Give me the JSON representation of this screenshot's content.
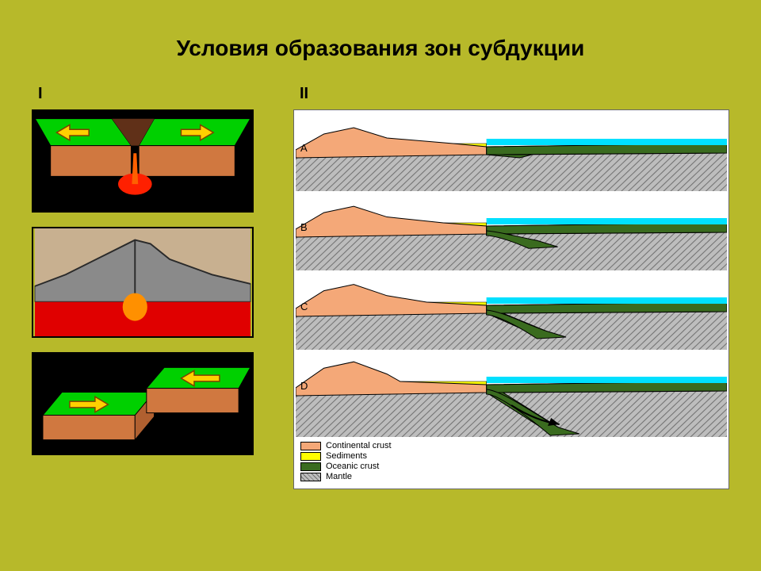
{
  "slide": {
    "background": "#b7b92a",
    "title": "Условия образования зон субдукции",
    "title_fontsize": 28,
    "title_color": "#000000",
    "col1_label": "I",
    "col2_label": "II"
  },
  "panels_left": {
    "p1": {
      "type": "divergent-plates-iso",
      "bg": "#000000",
      "plate_top_color": "#00d000",
      "plate_side_color": "#b06030",
      "plate_front_color": "#d07840",
      "magma_color": "#ff2000",
      "arrow_fill": "#ffd000",
      "arrow_border": "#804000"
    },
    "p2": {
      "type": "collision-mountain",
      "sky_color": "#c8b090",
      "mountain_color": "#8a8a8a",
      "mountain_edge": "#404040",
      "magma_color": "#e00000",
      "plume_color": "#ff9000"
    },
    "p3": {
      "type": "convergent-plates-iso",
      "bg": "#000000",
      "plate_top_color": "#00d000",
      "plate_side_color": "#b06030",
      "plate_front_color": "#d07840",
      "arrow_fill": "#ffd000",
      "arrow_border": "#804000"
    }
  },
  "stages": {
    "labels": [
      "A",
      "B",
      "C",
      "D"
    ],
    "colors": {
      "continental_crust": "#f4a878",
      "sediments": "#ffff00",
      "oceanic_crust": "#3a6b1f",
      "mantle": "#bdbdbd",
      "mantle_hatch": "#707070",
      "water": "#00e0ff",
      "outline": "#000000",
      "bg": "#ffffff"
    },
    "legend": [
      {
        "key": "continental_crust",
        "label": "Continental crust"
      },
      {
        "key": "sediments",
        "label": "Sediments"
      },
      {
        "key": "oceanic_crust",
        "label": "Oceanic crust"
      },
      {
        "key": "mantle",
        "label": "Mantle"
      }
    ],
    "subduction_progress": [
      0,
      0.15,
      0.4,
      0.8
    ]
  }
}
